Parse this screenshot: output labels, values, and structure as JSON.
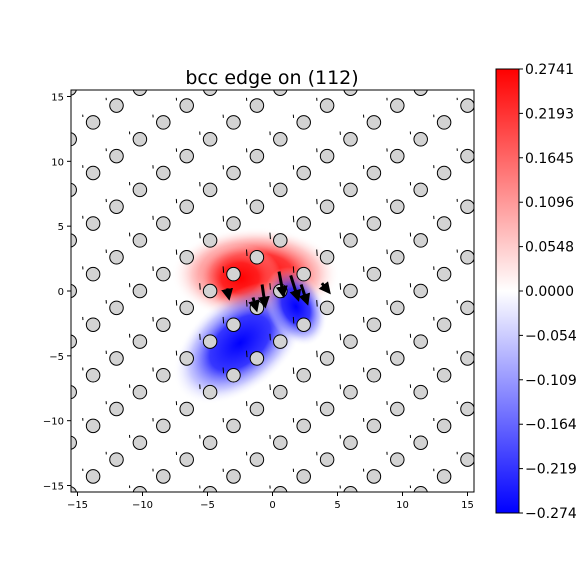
{
  "chart_data": {
    "type": "heatmap",
    "title": "bcc edge on (112)",
    "xlabel": "",
    "ylabel": "",
    "xlim": [
      -15.5,
      15.5
    ],
    "ylim": [
      -15.5,
      15.5
    ],
    "x_ticks": [
      -15,
      -10,
      -5,
      0,
      5,
      10,
      15
    ],
    "y_ticks": [
      -15,
      -10,
      -5,
      0,
      5,
      10,
      15
    ],
    "grid": false,
    "colormap": "bwr",
    "colorbar": {
      "min": -0.2741,
      "max": 0.2741,
      "ticks": [
        -0.2741,
        -0.2193,
        -0.1645,
        -0.1096,
        -0.0548,
        0.0,
        0.0548,
        0.1096,
        0.1645,
        0.2193,
        0.2741
      ],
      "tick_labels": [
        "−0.2741",
        "−0.2193",
        "−0.1645",
        "−0.1096",
        "−0.0548",
        "0.0000",
        "0.0548",
        "0.1096",
        "0.1645",
        "0.2193",
        "0.2741"
      ]
    },
    "atoms": {
      "marker": "circle",
      "face_color": "#d3d3d3",
      "edge_color": "#000000",
      "lattice_a": 5.4,
      "lattice_row_spacing": 1.3,
      "row_offset_cycle": [
        0,
        1.8,
        3.6
      ]
    },
    "strain_field": {
      "positive_lobe": {
        "x": -2.5,
        "y": 1.0,
        "amplitude": 0.2741
      },
      "negative_lobe": {
        "x": -2.5,
        "y": -4.0,
        "amplitude": -0.2741
      }
    },
    "displacement_arrows": [
      {
        "x": 0.5,
        "y": 1.5,
        "dx": 0.3,
        "dy": -1.6
      },
      {
        "x": 1.4,
        "y": 1.2,
        "dx": 0.5,
        "dy": -1.6
      },
      {
        "x": 2.2,
        "y": 0.5,
        "dx": 0.4,
        "dy": -1.2
      },
      {
        "x": -0.8,
        "y": 0.5,
        "dx": 0.2,
        "dy": -1.4
      },
      {
        "x": -1.5,
        "y": -0.5,
        "dx": 0.2,
        "dy": -0.7
      },
      {
        "x": 3.8,
        "y": 0.6,
        "dx": 0.4,
        "dy": -0.5
      },
      {
        "x": -3.5,
        "y": 0.2,
        "dx": 0.1,
        "dy": -0.5
      }
    ]
  }
}
